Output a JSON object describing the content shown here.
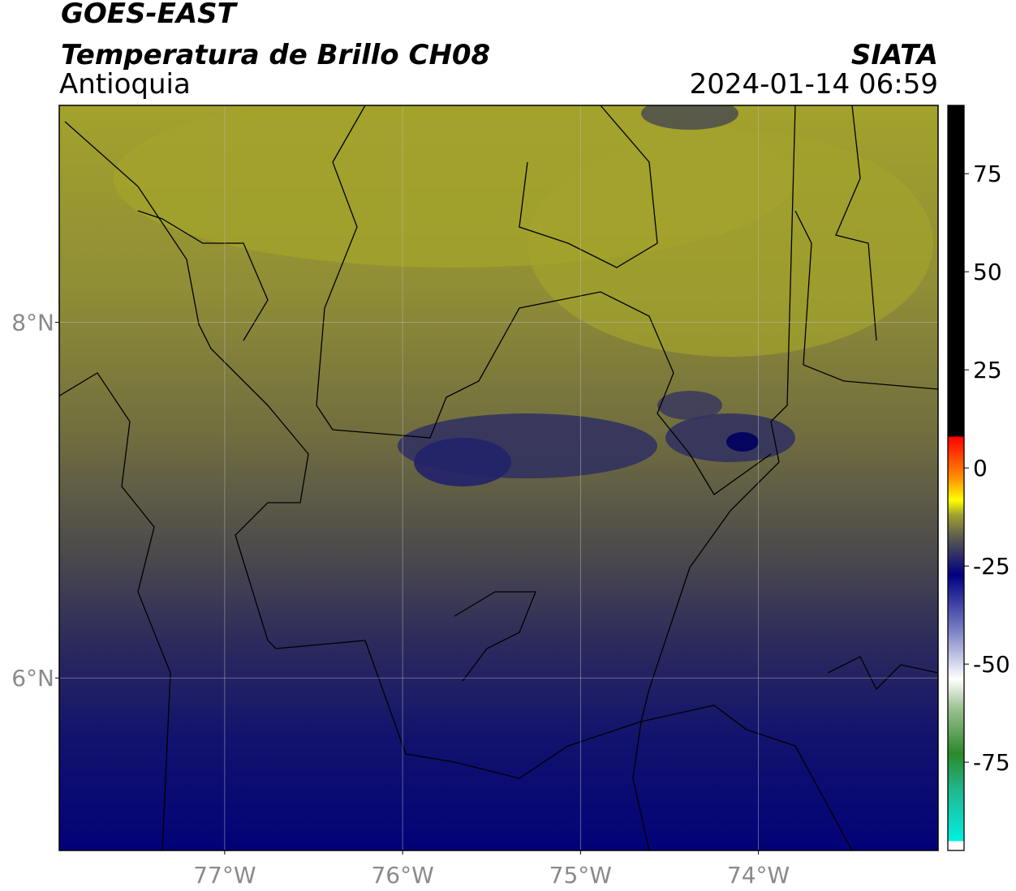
{
  "header": {
    "title": "GOES-EAST",
    "subtitle": "Temperatura de Brillo CH08",
    "region": "Antioquia",
    "source": "SIATA",
    "datetime": "2024-01-14 06:59"
  },
  "map": {
    "xlim": [
      -77.93,
      -72.99
    ],
    "ylim": [
      5.03,
      9.22
    ],
    "xticks": [
      {
        "value": -77,
        "label": "77°W"
      },
      {
        "value": -76,
        "label": "76°W"
      },
      {
        "value": -75,
        "label": "75°W"
      },
      {
        "value": -74,
        "label": "74°W"
      }
    ],
    "yticks": [
      {
        "value": 8,
        "label": "8°N"
      },
      {
        "value": 6,
        "label": "6°N"
      }
    ],
    "grid": true
  },
  "colorbar": {
    "lim": [
      -97.5,
      92.4
    ],
    "ticks": [
      75,
      50,
      25,
      0,
      -25,
      -50,
      -75
    ]
  }
}
